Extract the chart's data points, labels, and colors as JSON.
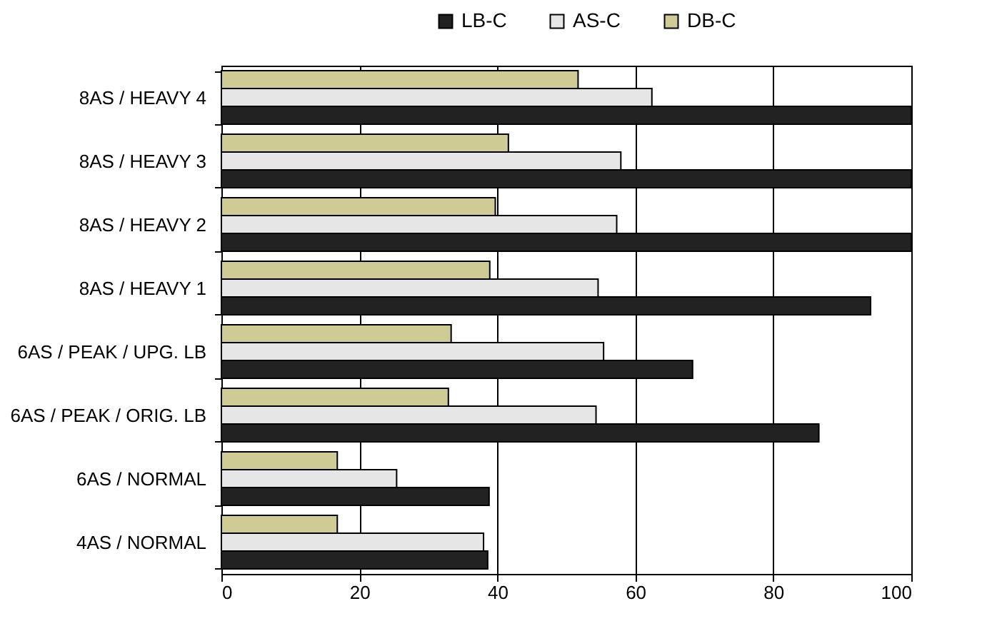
{
  "chart_data": {
    "type": "bar",
    "orientation": "horizontal",
    "categories": [
      "8AS / HEAVY 4",
      "8AS / HEAVY 3",
      "8AS / HEAVY 2",
      "8AS / HEAVY 1",
      "6AS / PEAK / UPG.  LB",
      "6AS / PEAK / ORIG. LB",
      "6AS / NORMAL",
      "4AS / NORMAL"
    ],
    "series": [
      {
        "name": "LB-C",
        "color": "#222222",
        "values": [
          100,
          100,
          100,
          94.1,
          68.3,
          86.6,
          38.8,
          38.6
        ]
      },
      {
        "name": "AS-C",
        "color": "#e6e6e6",
        "values": [
          62.4,
          57.9,
          57.3,
          54.6,
          55.4,
          54.3,
          25.4,
          38.0
        ]
      },
      {
        "name": "DB-C",
        "color": "#cfcb94",
        "values": [
          51.7,
          41.6,
          39.7,
          38.9,
          33.3,
          32.9,
          16.8,
          16.8
        ]
      }
    ],
    "xlim": [
      0,
      100
    ],
    "xticks": [
      0,
      20,
      40,
      60,
      80,
      100
    ],
    "grid": "x",
    "legend": "top"
  }
}
